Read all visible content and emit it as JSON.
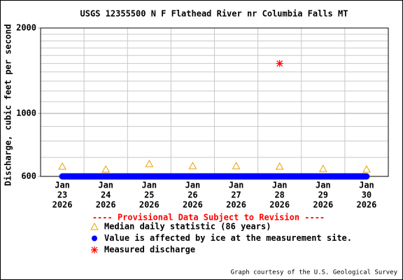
{
  "chart_data": {
    "type": "line",
    "title": "USGS 12355500 N F Flathead River nr Columbia Falls MT",
    "y_label": "Discharge, cubic feet per second",
    "categories": [
      [
        "Jan",
        "23",
        "2026"
      ],
      [
        "Jan",
        "24",
        "2026"
      ],
      [
        "Jan",
        "25",
        "2026"
      ],
      [
        "Jan",
        "26",
        "2026"
      ],
      [
        "Jan",
        "27",
        "2026"
      ],
      [
        "Jan",
        "28",
        "2026"
      ],
      [
        "Jan",
        "29",
        "2026"
      ],
      [
        "Jan",
        "30",
        "2026"
      ]
    ],
    "ylim": [
      600,
      2000
    ],
    "yticks": [
      600,
      1000,
      2000
    ],
    "minor_yticks": [
      700,
      800,
      900,
      1100,
      1200,
      1300,
      1400,
      1500,
      1600,
      1700,
      1800,
      1900
    ],
    "log_scale": true,
    "grid": true,
    "series": [
      {
        "name": "Median daily statistic (86 years)",
        "color": "#e6a000",
        "marker": "triangle",
        "values": [
          650,
          635,
          664,
          653,
          653,
          650,
          638,
          635
        ]
      },
      {
        "name": "Value is affected by ice at the measurement site.",
        "color": "#0000ff",
        "marker": "dot",
        "values": [
          600,
          600,
          600,
          600,
          600,
          600,
          600,
          600
        ]
      },
      {
        "name": "Measured discharge",
        "color": "#ff0000",
        "marker": "asterisk",
        "values": [
          null,
          null,
          null,
          null,
          null,
          1500,
          null,
          null
        ]
      }
    ],
    "notice": "---- Provisional Data Subject to Revision ----",
    "credit": "Graph courtesy of the U.S. Geological Survey"
  }
}
